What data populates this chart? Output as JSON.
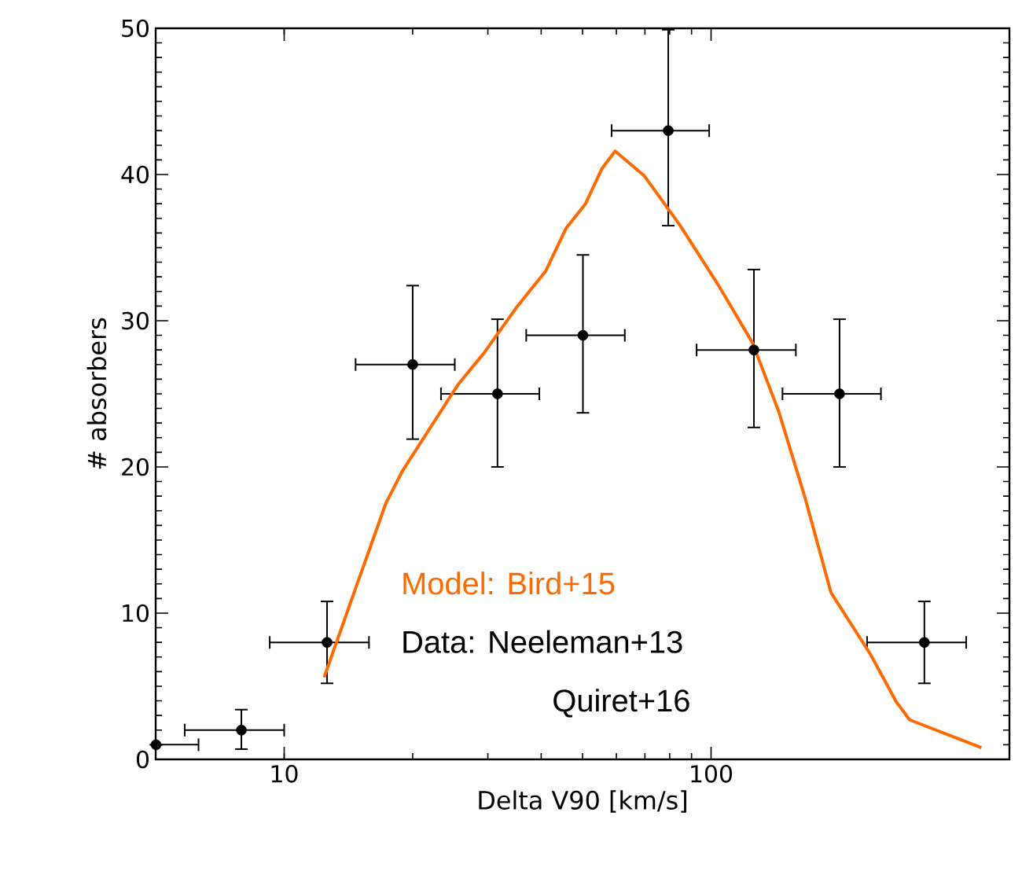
{
  "chart_data": {
    "type": "scatter",
    "xlabel": "Delta V90 [km/s]",
    "ylabel": "# absorbers",
    "xlim": [
      5,
      500
    ],
    "ylim": [
      0,
      50
    ],
    "log": "x",
    "xticks": [
      10,
      100
    ],
    "yticks": [
      0,
      10,
      20,
      30,
      40,
      50
    ],
    "legend": false,
    "grid": false,
    "series": [
      {
        "marker": "circle",
        "color": "#000000",
        "x": [
          5.01,
          7.94,
          12.6,
          20.0,
          31.6,
          50.1,
          79.4,
          126,
          200,
          316
        ],
        "values": [
          1,
          2,
          8,
          27,
          25,
          29,
          43,
          28,
          25,
          8
        ],
        "errors": [
          null,
          [
            0.7,
            3.4
          ],
          [
            5.2,
            10.8
          ],
          [
            21.9,
            32.4
          ],
          [
            20,
            30.1
          ],
          [
            23.7,
            34.5
          ],
          [
            36.5,
            49.9
          ],
          [
            22.7,
            33.5
          ],
          [
            20,
            30.1
          ],
          [
            5.2,
            10.8
          ]
        ],
        "xerrors": [
          [
            5,
            6.3
          ],
          [
            5.85,
            10
          ],
          [
            9.25,
            15.8
          ],
          [
            14.7,
            25.1
          ],
          [
            23.3,
            39.6
          ],
          [
            36.9,
            62.8
          ],
          [
            58.5,
            99
          ],
          [
            92.5,
            158
          ],
          [
            147,
            250
          ],
          [
            232,
            396
          ]
        ]
      },
      {
        "type": "line",
        "marker": "none",
        "name": "Model: Bird+15",
        "color": "#ff6a00",
        "x": [
          12.4,
          14.7,
          17.3,
          18.9,
          25.5,
          29.4,
          35.0,
          41.0,
          45.7,
          50.8,
          55.5,
          59.6,
          69.8,
          84.7,
          104.7,
          125,
          144,
          166,
          191,
          236,
          272,
          292,
          430
        ],
        "values": [
          5.6,
          11.7,
          17.5,
          19.7,
          25.6,
          27.8,
          30.9,
          33.4,
          36.3,
          38.0,
          40.4,
          41.6,
          39.9,
          36.5,
          32.3,
          28.5,
          23.8,
          17.9,
          11.4,
          7.2,
          3.9,
          2.7,
          0.8
        ]
      }
    ],
    "annotations": [
      "Data: Neeleman+13",
      "Quiret+16"
    ]
  }
}
